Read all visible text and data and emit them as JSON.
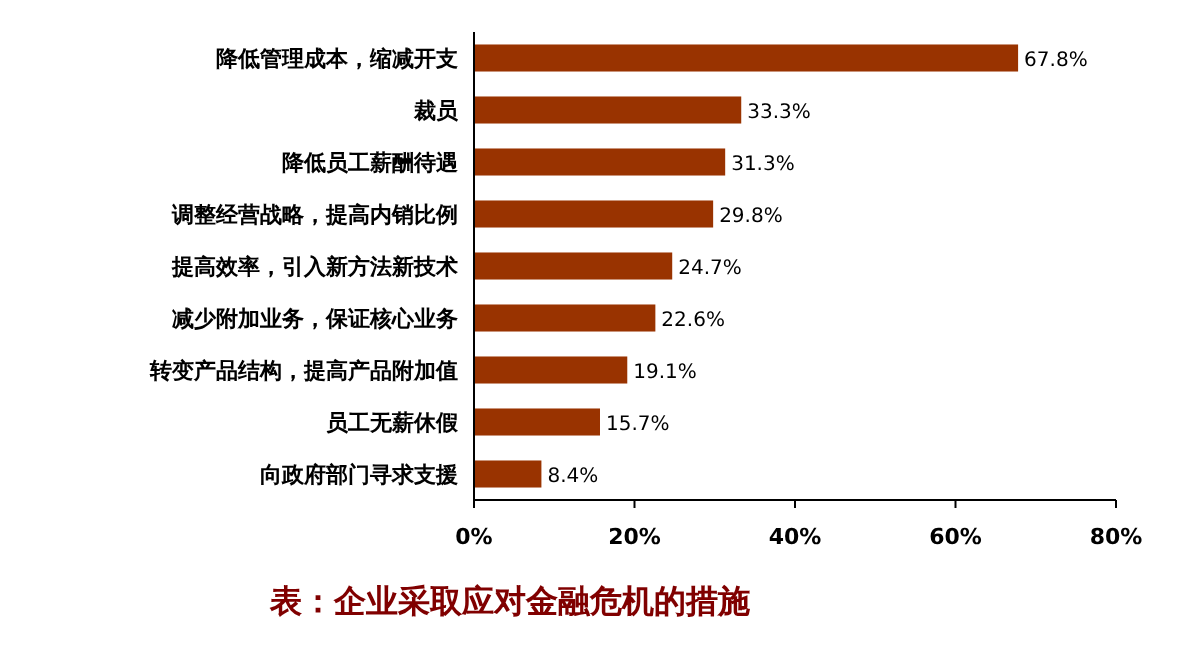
{
  "chart_data": {
    "type": "bar",
    "orientation": "horizontal",
    "categories": [
      "降低管理成本，缩减开支",
      "裁员",
      "降低员工薪酬待遇",
      "调整经营战略，提高内销比例",
      "提高效率，引入新方法新技术",
      "减少附加业务，保证核心业务",
      "转变产品结构，提高产品附加值",
      "员工无薪休假",
      "向政府部门寻求支援"
    ],
    "values": [
      67.8,
      33.3,
      31.3,
      29.8,
      24.7,
      22.6,
      19.1,
      15.7,
      8.4
    ],
    "value_labels": [
      "67.8%",
      "33.3%",
      "31.3%",
      "29.8%",
      "24.7%",
      "22.6%",
      "19.1%",
      "15.7%",
      "8.4%"
    ],
    "color": "#993300",
    "xlim": [
      0,
      80
    ],
    "xticks": [
      {
        "value": 0,
        "label": "0%"
      },
      {
        "value": 20,
        "label": "20%"
      },
      {
        "value": 40,
        "label": "40%"
      },
      {
        "value": 60,
        "label": "60%"
      },
      {
        "value": 80,
        "label": "80%"
      }
    ],
    "annotations": [
      "表：企业采取应对金融危机的措施"
    ]
  }
}
